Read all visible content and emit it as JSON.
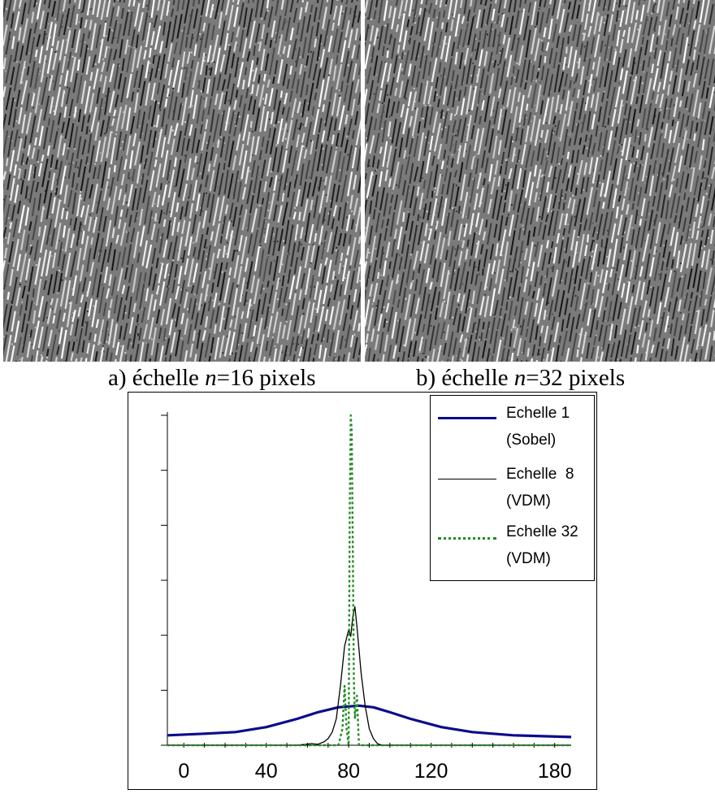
{
  "figure": {
    "panels": [
      {
        "prefix": "a) échelle ",
        "var": "n",
        "suffix": "=16 pixels"
      },
      {
        "prefix": "b) échelle ",
        "var": "n",
        "suffix": "=32 pixels"
      }
    ]
  },
  "chart_data": {
    "type": "line",
    "title": "",
    "xlabel": "",
    "ylabel": "",
    "xlim": [
      -8,
      188
    ],
    "ylim": [
      0,
      1
    ],
    "x_ticks": [
      0,
      40,
      80,
      120,
      180
    ],
    "grid": false,
    "legend_position": "top-right",
    "series": [
      {
        "name": "Echelle 1",
        "method": "(Sobel)",
        "color": "#0c0c8a",
        "style": "solid-thick",
        "points": [
          [
            -8,
            0.03
          ],
          [
            10,
            0.035
          ],
          [
            25,
            0.04
          ],
          [
            40,
            0.055
          ],
          [
            55,
            0.08
          ],
          [
            65,
            0.1
          ],
          [
            75,
            0.115
          ],
          [
            85,
            0.12
          ],
          [
            92,
            0.115
          ],
          [
            100,
            0.1
          ],
          [
            110,
            0.08
          ],
          [
            125,
            0.055
          ],
          [
            140,
            0.04
          ],
          [
            160,
            0.03
          ],
          [
            188,
            0.025
          ]
        ]
      },
      {
        "name": "Echelle  8",
        "method": "(VDM)",
        "color": "#000000",
        "style": "solid-thin",
        "points": [
          [
            -8,
            0
          ],
          [
            55,
            0
          ],
          [
            62,
            0.005
          ],
          [
            65,
            0.003
          ],
          [
            68,
            0.01
          ],
          [
            70,
            0.02
          ],
          [
            72,
            0.04
          ],
          [
            74,
            0.08
          ],
          [
            76,
            0.18
          ],
          [
            78,
            0.3
          ],
          [
            80,
            0.35
          ],
          [
            81,
            0.33
          ],
          [
            82,
            0.39
          ],
          [
            83,
            0.42
          ],
          [
            84,
            0.36
          ],
          [
            86,
            0.22
          ],
          [
            88,
            0.12
          ],
          [
            90,
            0.05
          ],
          [
            92,
            0.02
          ],
          [
            94,
            0.005
          ],
          [
            96,
            0
          ],
          [
            188,
            0
          ]
        ]
      },
      {
        "name": "Echelle 32",
        "method": "(VDM)",
        "color": "#1f8c1f",
        "style": "dotted",
        "points": [
          [
            -8,
            0
          ],
          [
            75,
            0
          ],
          [
            77,
            0.05
          ],
          [
            78,
            0.18
          ],
          [
            79,
            0.05
          ],
          [
            80,
            0
          ],
          [
            80.5,
            0.7
          ],
          [
            81,
            1
          ],
          [
            81.5,
            0.95
          ],
          [
            82,
            0.6
          ],
          [
            82.5,
            0.2
          ],
          [
            83,
            0.08
          ],
          [
            84,
            0.15
          ],
          [
            85,
            0
          ],
          [
            188,
            0
          ]
        ]
      }
    ]
  }
}
